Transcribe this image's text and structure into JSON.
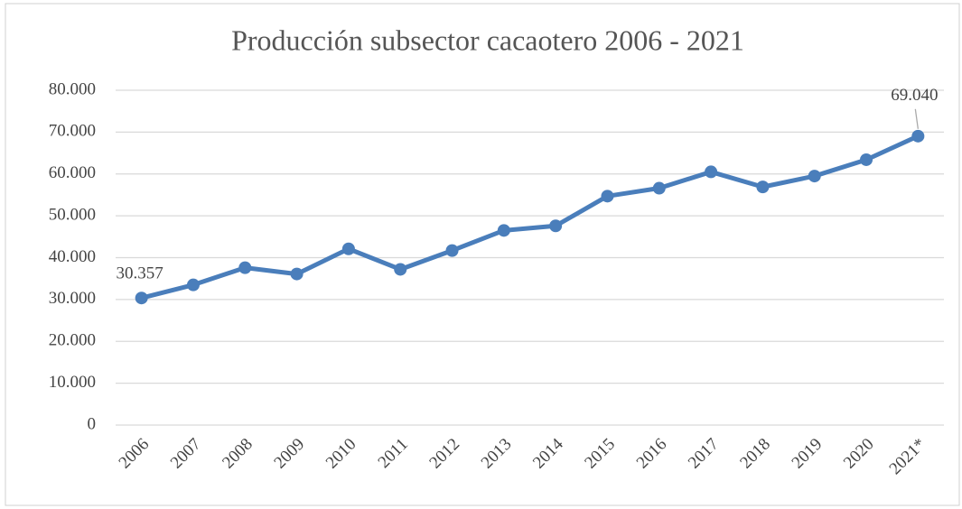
{
  "chart_data": {
    "type": "line",
    "title": "Producción subsector cacaotero 2006 - 2021",
    "categories": [
      "2006",
      "2007",
      "2008",
      "2009",
      "2010",
      "2011",
      "2012",
      "2013",
      "2014",
      "2015",
      "2016",
      "2017",
      "2018",
      "2019",
      "2020",
      "2021*"
    ],
    "series": [
      {
        "color": "#4a7ebb",
        "values": [
          30357,
          33500,
          37600,
          36100,
          42100,
          37200,
          41700,
          46500,
          47600,
          54700,
          56600,
          60500,
          56900,
          59500,
          63400,
          69040
        ],
        "value_labels": [
          "30.357",
          null,
          null,
          null,
          null,
          null,
          null,
          null,
          null,
          null,
          null,
          null,
          null,
          null,
          null,
          "69.040"
        ]
      }
    ],
    "ylim": [
      0,
      80000
    ],
    "yticks": [
      0,
      {
        "value": 10000,
        "label": "10.000"
      },
      {
        "value": 20000,
        "label": "20.000"
      },
      {
        "value": 30000,
        "label": "30.000"
      },
      {
        "value": 40000,
        "label": "40.000"
      },
      {
        "value": 50000,
        "label": "50.000"
      },
      {
        "value": 60000,
        "label": "60.000"
      },
      {
        "value": 70000,
        "label": "70.000"
      },
      {
        "value": 80000,
        "label": "80.000"
      }
    ],
    "grid": true
  }
}
